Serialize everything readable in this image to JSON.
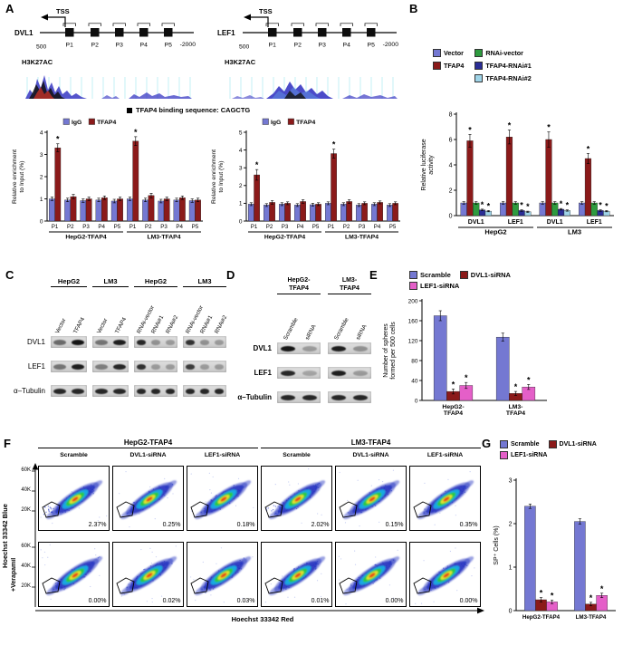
{
  "panels": {
    "A": {
      "label": "A",
      "genes": [
        {
          "name": "DVL1",
          "tss": "TSS",
          "left_scale": "500",
          "right_scale": "-2000",
          "sites": [
            "P1",
            "P2",
            "P3",
            "P4",
            "P5"
          ],
          "track": "H3K27AC"
        },
        {
          "name": "LEF1",
          "tss": "TSS",
          "left_scale": "500",
          "right_scale": "-2000",
          "sites": [
            "P1",
            "P2",
            "P3",
            "P4",
            "P5"
          ],
          "track": "H3K27AC"
        }
      ],
      "binding_legend": "TFAP4 binding sequence: CAGCTG",
      "charts": [
        {
          "ylabel": [
            "Relative enrichment",
            "to Input (%)"
          ],
          "ylim": 4,
          "yticks": [
            0,
            1,
            2,
            3,
            4
          ],
          "cats": [
            "P1",
            "P2",
            "P3",
            "P4",
            "P5",
            "P1",
            "P2",
            "P3",
            "P4",
            "P5"
          ],
          "groups": [
            {
              "label": "HepG2-TFAP4",
              "from": 0,
              "to": 4
            },
            {
              "label": "LM3-TFAP4",
              "from": 5,
              "to": 9
            }
          ],
          "series": [
            {
              "name": "IgG",
              "color": "#7478d2",
              "values": [
                1,
                0.95,
                0.92,
                0.95,
                0.9,
                1,
                0.95,
                0.9,
                0.95,
                0.92
              ],
              "errs": [
                0.08,
                0.08,
                0.08,
                0.08,
                0.08,
                0.08,
                0.08,
                0.08,
                0.08,
                0.08
              ],
              "stars": []
            },
            {
              "name": "TFAP4",
              "color": "#8b1a1a",
              "values": [
                3.3,
                1.1,
                1,
                1.05,
                1,
                3.6,
                1.15,
                1,
                1.05,
                0.95
              ],
              "errs": [
                0.18,
                0.1,
                0.08,
                0.08,
                0.08,
                0.2,
                0.1,
                0.08,
                0.08,
                0.08
              ],
              "stars": [
                0,
                5
              ]
            }
          ]
        },
        {
          "ylabel": [
            "Relative enrichment",
            "to Input (%)"
          ],
          "ylim": 5,
          "yticks": [
            0,
            1,
            2,
            3,
            4,
            5
          ],
          "cats": [
            "P1",
            "P2",
            "P3",
            "P4",
            "P5",
            "P1",
            "P2",
            "P3",
            "P4",
            "P5"
          ],
          "groups": [
            {
              "label": "HepG2-TFAP4",
              "from": 0,
              "to": 4
            },
            {
              "label": "LM3-TFAP4",
              "from": 5,
              "to": 9
            }
          ],
          "series": [
            {
              "name": "IgG",
              "color": "#7478d2",
              "values": [
                0.95,
                0.9,
                0.95,
                0.9,
                0.92,
                1,
                0.95,
                0.9,
                0.95,
                0.9
              ],
              "errs": [
                0.08,
                0.08,
                0.08,
                0.08,
                0.08,
                0.08,
                0.08,
                0.08,
                0.08,
                0.08
              ],
              "stars": []
            },
            {
              "name": "TFAP4",
              "color": "#8b1a1a",
              "values": [
                2.6,
                1.05,
                1,
                1.1,
                0.95,
                3.8,
                1.1,
                1,
                1.05,
                1
              ],
              "errs": [
                0.3,
                0.1,
                0.08,
                0.1,
                0.08,
                0.25,
                0.1,
                0.08,
                0.08,
                0.08
              ],
              "stars": [
                0,
                5
              ]
            }
          ]
        }
      ]
    },
    "B": {
      "label": "B",
      "legend": [
        {
          "label": "Vector",
          "color": "#7478d2"
        },
        {
          "label": "TFAP4",
          "color": "#8b1a1a"
        },
        {
          "label": "RNAi-vector",
          "color": "#2e9b3f"
        },
        {
          "label": "TFAP4-RNAi#1",
          "color": "#2a2d96"
        },
        {
          "label": "TFAP4-RNAi#2",
          "color": "#9fd4e8"
        }
      ],
      "chart": {
        "ylabel": [
          "Relative luciferase",
          "activity"
        ],
        "ylim": 8,
        "yticks": [
          0,
          2,
          4,
          6,
          8
        ],
        "cats": [
          "DVL1",
          "LEF1",
          "DVL1",
          "LEF1"
        ],
        "groups": [
          {
            "label": "HepG2",
            "from": 0,
            "to": 1
          },
          {
            "label": "LM3",
            "from": 2,
            "to": 3
          }
        ],
        "series": [
          {
            "name": "Vector",
            "color": "#7478d2",
            "values": [
              1,
              1,
              1,
              1
            ],
            "errs": [
              0.1,
              0.1,
              0.1,
              0.1
            ],
            "stars": []
          },
          {
            "name": "TFAP4",
            "color": "#8b1a1a",
            "values": [
              5.9,
              6.2,
              6.0,
              4.5
            ],
            "errs": [
              0.5,
              0.55,
              0.6,
              0.4
            ],
            "stars": [
              0,
              1,
              2,
              3
            ]
          },
          {
            "name": "RNAi-vector",
            "color": "#2e9b3f",
            "values": [
              1,
              1,
              1,
              1
            ],
            "errs": [
              0.1,
              0.1,
              0.1,
              0.1
            ],
            "stars": []
          },
          {
            "name": "TFAP4-RNAi#1",
            "color": "#2a2d96",
            "values": [
              0.45,
              0.4,
              0.5,
              0.4
            ],
            "errs": [
              0.06,
              0.06,
              0.06,
              0.06
            ],
            "stars": [
              0,
              1,
              2,
              3
            ]
          },
          {
            "name": "TFAP4-RNAi#2",
            "color": "#9fd4e8",
            "values": [
              0.35,
              0.3,
              0.4,
              0.35
            ],
            "errs": [
              0.05,
              0.05,
              0.05,
              0.05
            ],
            "stars": [
              0,
              1,
              2,
              3
            ]
          }
        ]
      }
    },
    "C": {
      "label": "C",
      "groups": [
        {
          "header": [
            "HepG2"
          ],
          "lanes": [
            "Vector",
            "TFAP4"
          ]
        },
        {
          "header": [
            "LM3"
          ],
          "lanes": [
            "Vector",
            "TFAP4"
          ]
        },
        {
          "header": [
            "HepG2"
          ],
          "lanes": [
            "RNAi-vector",
            "RNAi#1",
            "RNAi#2"
          ]
        },
        {
          "header": [
            "LM3"
          ],
          "lanes": [
            "RNAi-vector",
            "RNAi#1",
            "RNAi#2"
          ]
        }
      ],
      "rows": [
        {
          "label": "DVL1",
          "bands": [
            [
              0.55,
              1
            ],
            [
              0.5,
              0.95
            ],
            [
              0.9,
              0.35,
              0.3
            ],
            [
              0.85,
              0.35,
              0.3
            ]
          ]
        },
        {
          "label": "LEF1",
          "bands": [
            [
              0.5,
              0.95
            ],
            [
              0.45,
              0.9
            ],
            [
              0.85,
              0.3,
              0.3
            ],
            [
              0.8,
              0.3,
              0.3
            ]
          ]
        },
        {
          "label": "α–Tubulin",
          "bands": [
            [
              0.9,
              0.9
            ],
            [
              0.9,
              0.9
            ],
            [
              0.9,
              0.9,
              0.9
            ],
            [
              0.9,
              0.9,
              0.9
            ]
          ]
        }
      ]
    },
    "D": {
      "label": "D",
      "groups": [
        {
          "header": [
            "HepG2-",
            "TFAP4"
          ],
          "lanes": [
            "Scramble",
            "siRNA"
          ]
        },
        {
          "header": [
            "LM3-",
            "TFAP4"
          ],
          "lanes": [
            "Scramble",
            "siRNA"
          ]
        }
      ],
      "rows": [
        {
          "label": "DVL1",
          "bands": [
            [
              1,
              0.3
            ],
            [
              0.95,
              0.35
            ]
          ]
        },
        {
          "label": "LEF1",
          "bands": [
            [
              0.9,
              0.25
            ],
            [
              0.95,
              0.3
            ]
          ]
        },
        {
          "label": "α–Tubulin",
          "bands": [
            [
              0.9,
              0.9
            ],
            [
              0.9,
              0.9
            ]
          ]
        }
      ]
    },
    "E": {
      "label": "E",
      "legend": [
        {
          "label": "Scramble",
          "color": "#7478d2"
        },
        {
          "label": "DVL1-siRNA",
          "color": "#8b1a1a"
        },
        {
          "label": "LEF1-siRNA",
          "color": "#e45fc8"
        }
      ],
      "chart": {
        "ylabel": [
          "Number of spheres",
          "formed per 500 cells"
        ],
        "ylim": 200,
        "yticks": [
          0,
          40,
          80,
          120,
          160,
          200
        ],
        "cats": [
          "HepG2-\nTFAP4",
          "LM3-\nTFAP4"
        ],
        "series": [
          {
            "name": "Scramble",
            "color": "#7478d2",
            "values": [
              170,
              127
            ],
            "errs": [
              10,
              8
            ],
            "stars": []
          },
          {
            "name": "DVL1-siRNA",
            "color": "#8b1a1a",
            "values": [
              18,
              14
            ],
            "errs": [
              5,
              4
            ],
            "stars": [
              0,
              1
            ]
          },
          {
            "name": "LEF1-siRNA",
            "color": "#e45fc8",
            "values": [
              30,
              27
            ],
            "errs": [
              6,
              5
            ],
            "stars": [
              0,
              1
            ]
          }
        ]
      }
    },
    "F": {
      "label": "F",
      "cell_groups": [
        {
          "label": "HepG2-TFAP4",
          "cols": [
            "Scramble",
            "DVL1-siRNA",
            "LEF1-siRNA"
          ]
        },
        {
          "label": "LM3-TFAP4",
          "cols": [
            "Scramble",
            "DVL1-siRNA",
            "LEF1-siRNA"
          ]
        }
      ],
      "rows": [
        {
          "label": "",
          "percents": [
            "2.37%",
            "0.25%",
            "0.18%",
            "2.02%",
            "0.15%",
            "0.35%"
          ]
        },
        {
          "label": "+Verapamil",
          "percents": [
            "0.00%",
            "0.02%",
            "0.03%",
            "0.01%",
            "0.00%",
            "0.00%"
          ]
        }
      ],
      "yaxis": {
        "label": "Hoechst 33342 Blue",
        "ticks": [
          "60K",
          "40K",
          "20K"
        ]
      },
      "xaxis": {
        "label": "Hoechst 33342 Red"
      }
    },
    "G": {
      "label": "G",
      "legend": [
        {
          "label": "Scramble",
          "color": "#7478d2"
        },
        {
          "label": "DVL1-siRNA",
          "color": "#8b1a1a"
        },
        {
          "label": "LEF1-siRNA",
          "color": "#e45fc8"
        }
      ],
      "chart": {
        "ylabel": [
          "SP⁺ Cells (%)"
        ],
        "ylim": 3,
        "yticks": [
          0,
          1,
          2,
          3
        ],
        "cats": [
          "HepG2-TFAP4",
          "LM3-TFAP4"
        ],
        "series": [
          {
            "name": "Scramble",
            "color": "#7478d2",
            "values": [
              2.4,
              2.05
            ],
            "errs": [
              0.05,
              0.06
            ],
            "stars": []
          },
          {
            "name": "DVL1-siRNA",
            "color": "#8b1a1a",
            "values": [
              0.25,
              0.15
            ],
            "errs": [
              0.05,
              0.04
            ],
            "stars": [
              0,
              1
            ]
          },
          {
            "name": "LEF1-siRNA",
            "color": "#e45fc8",
            "values": [
              0.2,
              0.35
            ],
            "errs": [
              0.04,
              0.05
            ],
            "stars": [
              0,
              1
            ]
          }
        ]
      }
    }
  }
}
